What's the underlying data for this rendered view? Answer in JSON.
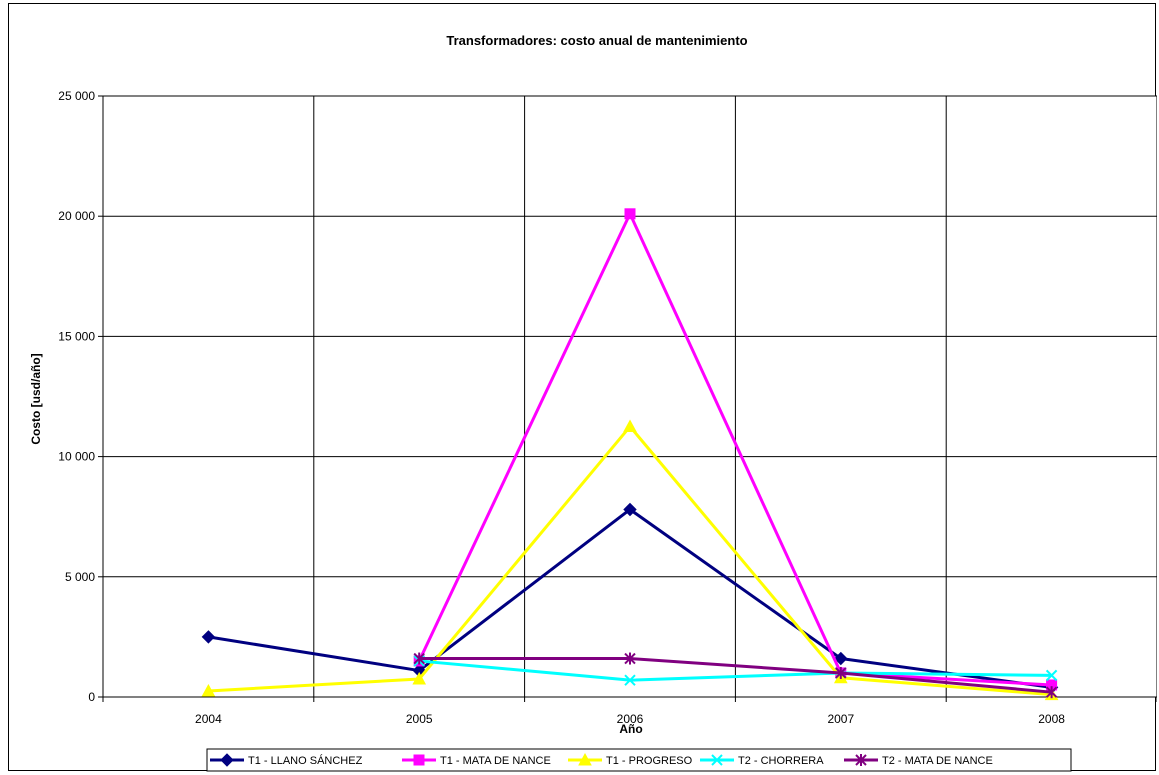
{
  "chart_data": {
    "type": "line",
    "title": "Transformadores: costo anual de mantenimiento",
    "xlabel": "Año",
    "ylabel": "Costo [usd/año]",
    "categories": [
      "2004",
      "2005",
      "2006",
      "2007",
      "2008"
    ],
    "ylim": [
      0,
      25000
    ],
    "yticks": [
      0,
      5000,
      10000,
      15000,
      20000,
      25000
    ],
    "ytick_labels": [
      "0",
      "5 000",
      "10 000",
      "15 000",
      "20 000",
      "25 000"
    ],
    "grid": true,
    "legend_position": "bottom",
    "series": [
      {
        "name": "T1 - LLANO SÁNCHEZ",
        "color": "#000080",
        "marker": "diamond",
        "values": [
          2500,
          1100,
          7800,
          1600,
          400
        ]
      },
      {
        "name": "T1 - MATA DE NANCE",
        "color": "#ff00ff",
        "marker": "square",
        "values": [
          null,
          1500,
          20100,
          1000,
          500
        ]
      },
      {
        "name": "T1 - PROGRESO",
        "color": "#ffff00",
        "marker": "triangle",
        "values": [
          250,
          750,
          11250,
          800,
          100
        ]
      },
      {
        "name": "T2 - CHORRERA",
        "color": "#00ffff",
        "marker": "x",
        "values": [
          null,
          1500,
          700,
          1000,
          900
        ]
      },
      {
        "name": "T2 - MATA DE NANCE",
        "color": "#800080",
        "marker": "star",
        "values": [
          null,
          1600,
          1600,
          1000,
          200
        ]
      }
    ]
  }
}
